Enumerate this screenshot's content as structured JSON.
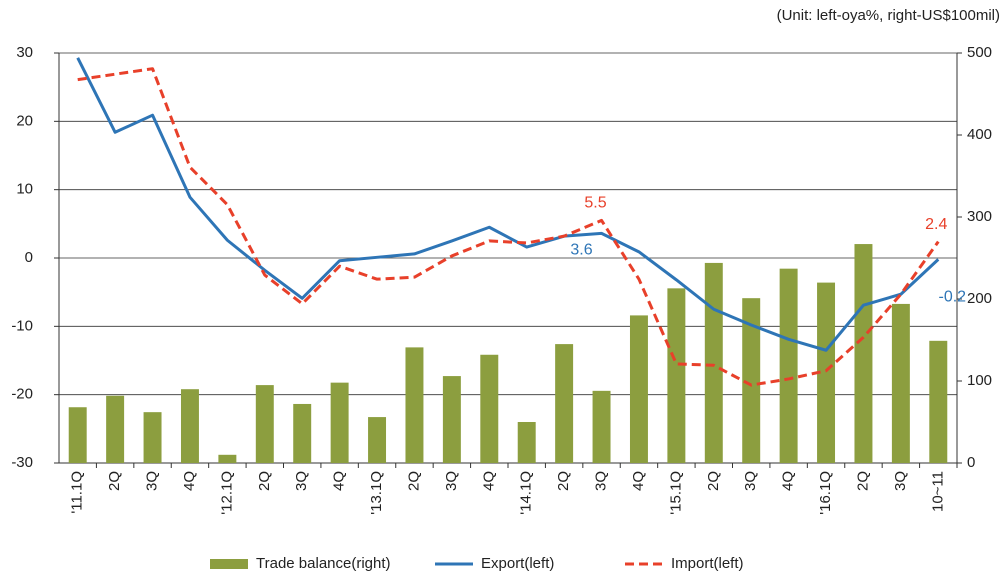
{
  "chart_data": {
    "type": "combo",
    "subtitle": "(Unit: left-oya%, right-US$100mil)",
    "categories": [
      "'11.1Q",
      "2Q",
      "3Q",
      "4Q",
      "'12.1Q",
      "2Q",
      "3Q",
      "4Q",
      "'13.1Q",
      "2Q",
      "3Q",
      "4Q",
      "'14.1Q",
      "2Q",
      "3Q",
      "4Q",
      "'15.1Q",
      "2Q",
      "3Q",
      "4Q",
      "'16.1Q",
      "2Q",
      "3Q",
      "10~11"
    ],
    "ylim": [
      -30,
      30
    ],
    "yticks": [
      -30,
      -20,
      -10,
      0,
      10,
      20,
      30
    ],
    "y2lim": [
      0,
      500
    ],
    "y2ticks": [
      0,
      100,
      200,
      300,
      400,
      500
    ],
    "grid": true,
    "legend": "bottom",
    "series": [
      {
        "name": "Trade balance(right)",
        "type": "bar",
        "axis": "y2",
        "color": "#8c9e3f",
        "values": [
          68,
          82,
          62,
          90,
          10,
          95,
          72,
          98,
          56,
          141,
          106,
          132,
          50,
          145,
          88,
          180,
          213,
          244,
          201,
          237,
          220,
          267,
          194,
          149
        ]
      },
      {
        "name": "Export(left)",
        "type": "line",
        "color": "#2e75b6",
        "values": [
          29.3,
          18.4,
          20.9,
          8.9,
          2.6,
          -1.8,
          -5.9,
          -0.4,
          0.1,
          0.6,
          2.5,
          4.5,
          1.6,
          3.2,
          3.6,
          0.9,
          -3.2,
          -7.5,
          -9.8,
          -11.9,
          -13.5,
          -6.9,
          -5.3,
          -0.2
        ],
        "value_labels": [
          null,
          null,
          null,
          null,
          null,
          null,
          null,
          null,
          null,
          null,
          null,
          null,
          null,
          null,
          "3.6",
          null,
          null,
          null,
          null,
          null,
          null,
          null,
          null,
          "-0.2"
        ]
      },
      {
        "name": "Import(left)",
        "type": "line",
        "dashed": true,
        "color": "#e8402a",
        "values": [
          26.1,
          26.9,
          27.7,
          13.3,
          7.8,
          -2.5,
          -6.7,
          -1.2,
          -3.1,
          -2.8,
          0.3,
          2.5,
          2.2,
          3.2,
          5.5,
          -3.1,
          -15.5,
          -15.7,
          -18.6,
          -17.7,
          -16.5,
          -11.6,
          -5.3,
          2.4
        ],
        "value_labels": [
          null,
          null,
          null,
          null,
          null,
          null,
          null,
          null,
          null,
          null,
          null,
          null,
          null,
          null,
          "5.5",
          null,
          null,
          null,
          null,
          null,
          null,
          null,
          null,
          "2.4"
        ]
      }
    ]
  }
}
